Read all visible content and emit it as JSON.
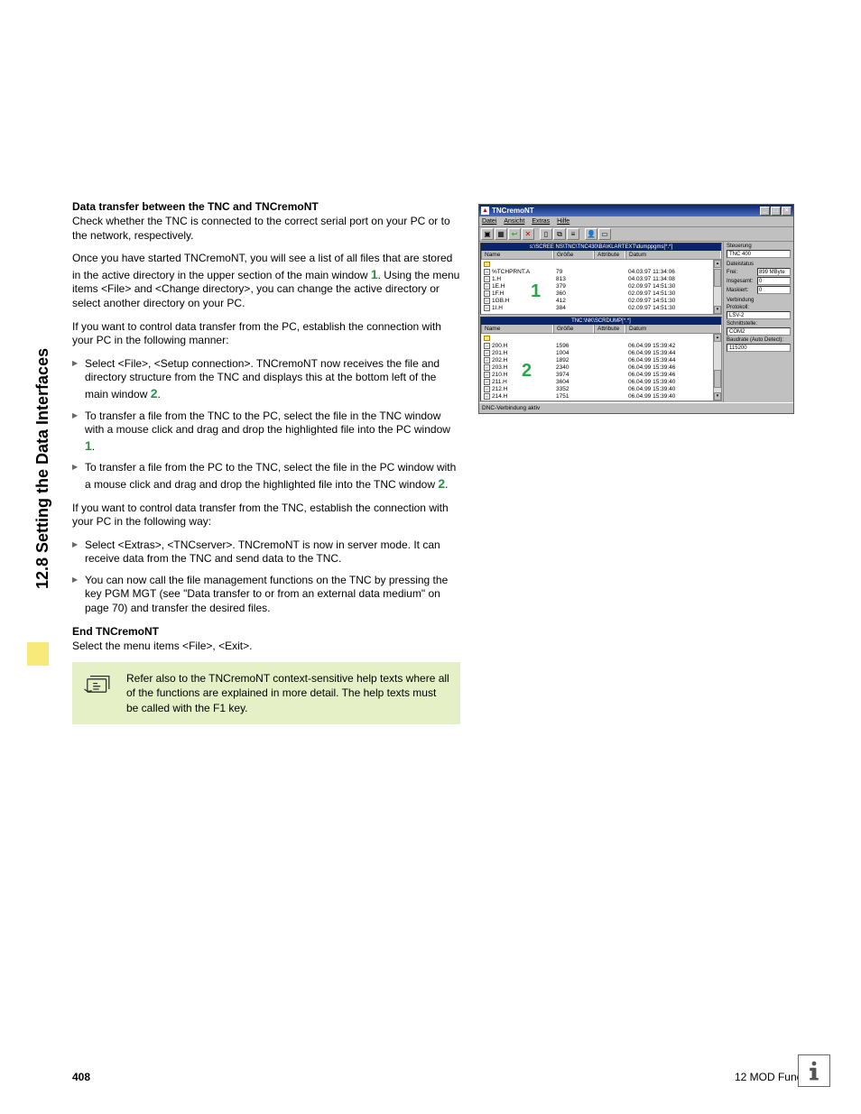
{
  "side_tab": "12.8 Setting the Data Interfaces",
  "section": {
    "h1": "Data transfer between the TNC and TNCremoNT",
    "p1": "Check whether the TNC is connected to the correct serial port on your PC or to the network, respectively.",
    "p2a": "Once you have started TNCremoNT, you will see a list of all files that are stored in the active directory in the upper section of the main window ",
    "p2b": ". Using the menu items <File> and <Change directory>, you can change the active directory or select another directory on your PC.",
    "p3": "If you want to control data transfer from the PC, establish the connection with your PC in the following manner:",
    "b1a": "Select <File>, <Setup connection>. TNCremoNT now receives the file and directory structure from the TNC and displays this at the bottom left of the main window ",
    "b1b": ".",
    "b2a": "To transfer a file from the TNC to the PC, select the file in the TNC window with a mouse click and drag and drop the highlighted file into the PC window ",
    "b2b": ".",
    "b3a": "To transfer a file from the PC to the TNC, select the file in the PC window with a mouse click and drag and drop the highlighted file into the TNC window ",
    "b3b": ".",
    "p4": "If you want to control data transfer from the TNC, establish the connection with your PC in the following way:",
    "b4": "Select <Extras>, <TNCserver>. TNCremoNT is now in server mode. It can receive data from the TNC and send data to the TNC.",
    "b5": "You can now call the file management functions on the TNC by pressing the key PGM MGT (see \"Data transfer to or from an external data medium\" on page 70) and transfer the desired files.",
    "h2": "End TNCremoNT",
    "p5": "Select the menu items <File>, <Exit>.",
    "note": "Refer also to the TNCremoNT context-sensitive help texts where all of the functions are explained in more detail. The help texts must be called with the F1 key."
  },
  "app": {
    "title": "TNCremoNT",
    "menus": [
      "Datei",
      "Ansicht",
      "Extras",
      "Hilfe"
    ],
    "toolbar_glyphs": [
      "▣",
      "▦",
      "↩",
      "✕",
      "▯",
      "⧉",
      "≡",
      "👤",
      "▭"
    ],
    "panel1": {
      "path": "s:\\SCREE NS\\TNC\\TNC430\\BA\\KLARTEXT\\dumppgms[*.*]",
      "cols": [
        "Name",
        "Größe",
        "Attribute",
        "Datum"
      ],
      "rows": [
        {
          "name": "",
          "icon": "fold",
          "size": "",
          "date": ""
        },
        {
          "name": "%TCHPRNT.A",
          "icon": "file",
          "size": "79",
          "date": "04.03.97 11:34:06"
        },
        {
          "name": "1.H",
          "icon": "h",
          "size": "813",
          "date": "04.03.97 11:34:08"
        },
        {
          "name": "1E.H",
          "icon": "h",
          "size": "379",
          "date": "02.09.97 14:51:30"
        },
        {
          "name": "1F.H",
          "icon": "h",
          "size": "360",
          "date": "02.09.97 14:51:30"
        },
        {
          "name": "1GB.H",
          "icon": "h",
          "size": "412",
          "date": "02.09.97 14:51:30"
        },
        {
          "name": "1I.H",
          "icon": "h",
          "size": "384",
          "date": "02.09.97 14:51:30"
        }
      ]
    },
    "panel2": {
      "path": "TNC:\\NK\\SCRDUMP[*.*]",
      "cols": [
        "Name",
        "Größe",
        "Attribute",
        "Datum"
      ],
      "rows": [
        {
          "name": "",
          "icon": "fold",
          "size": "",
          "date": ""
        },
        {
          "name": "200.H",
          "icon": "h",
          "size": "1596",
          "date": "06.04.99 15:39:42"
        },
        {
          "name": "201.H",
          "icon": "h",
          "size": "1004",
          "date": "06.04.99 15:39:44"
        },
        {
          "name": "202.H",
          "icon": "h",
          "size": "1892",
          "date": "06.04.99 15:39:44"
        },
        {
          "name": "203.H",
          "icon": "h",
          "size": "2340",
          "date": "06.04.99 15:39:46"
        },
        {
          "name": "210.H",
          "icon": "h",
          "size": "3974",
          "date": "06.04.99 15:39:46"
        },
        {
          "name": "211.H",
          "icon": "h",
          "size": "3604",
          "date": "06.04.99 15:39:40"
        },
        {
          "name": "212.H",
          "icon": "h",
          "size": "3352",
          "date": "06.04.99 15:39:40"
        },
        {
          "name": "214.H",
          "icon": "h",
          "size": "1751",
          "date": "06.04.99 15:39:40"
        }
      ]
    },
    "side": {
      "steuerung_lbl": "Steuerung",
      "steuerung_val": "TNC 400",
      "dateistatus_lbl": "Dateistatus",
      "frei_lbl": "Frei:",
      "frei_val": "899 MByte",
      "insgesamt_lbl": "Insgesamt:",
      "insgesamt_val": "0",
      "maskiert_lbl": "Maskiert:",
      "maskiert_val": "0",
      "verbindung_lbl": "Verbindung",
      "protokoll_lbl": "Protokoll:",
      "protokoll_val": "LSV-2",
      "schnittstelle_lbl": "Schnittstelle:",
      "schnittstelle_val": "COM2",
      "baud_lbl": "Baudrate (Auto Detect):",
      "baud_val": "115200"
    },
    "status": "DNC-Verbindung aktiv"
  },
  "footer": {
    "page": "408",
    "chapter": "12 MOD Functions"
  },
  "markers": {
    "one": "1",
    "two": "2"
  }
}
